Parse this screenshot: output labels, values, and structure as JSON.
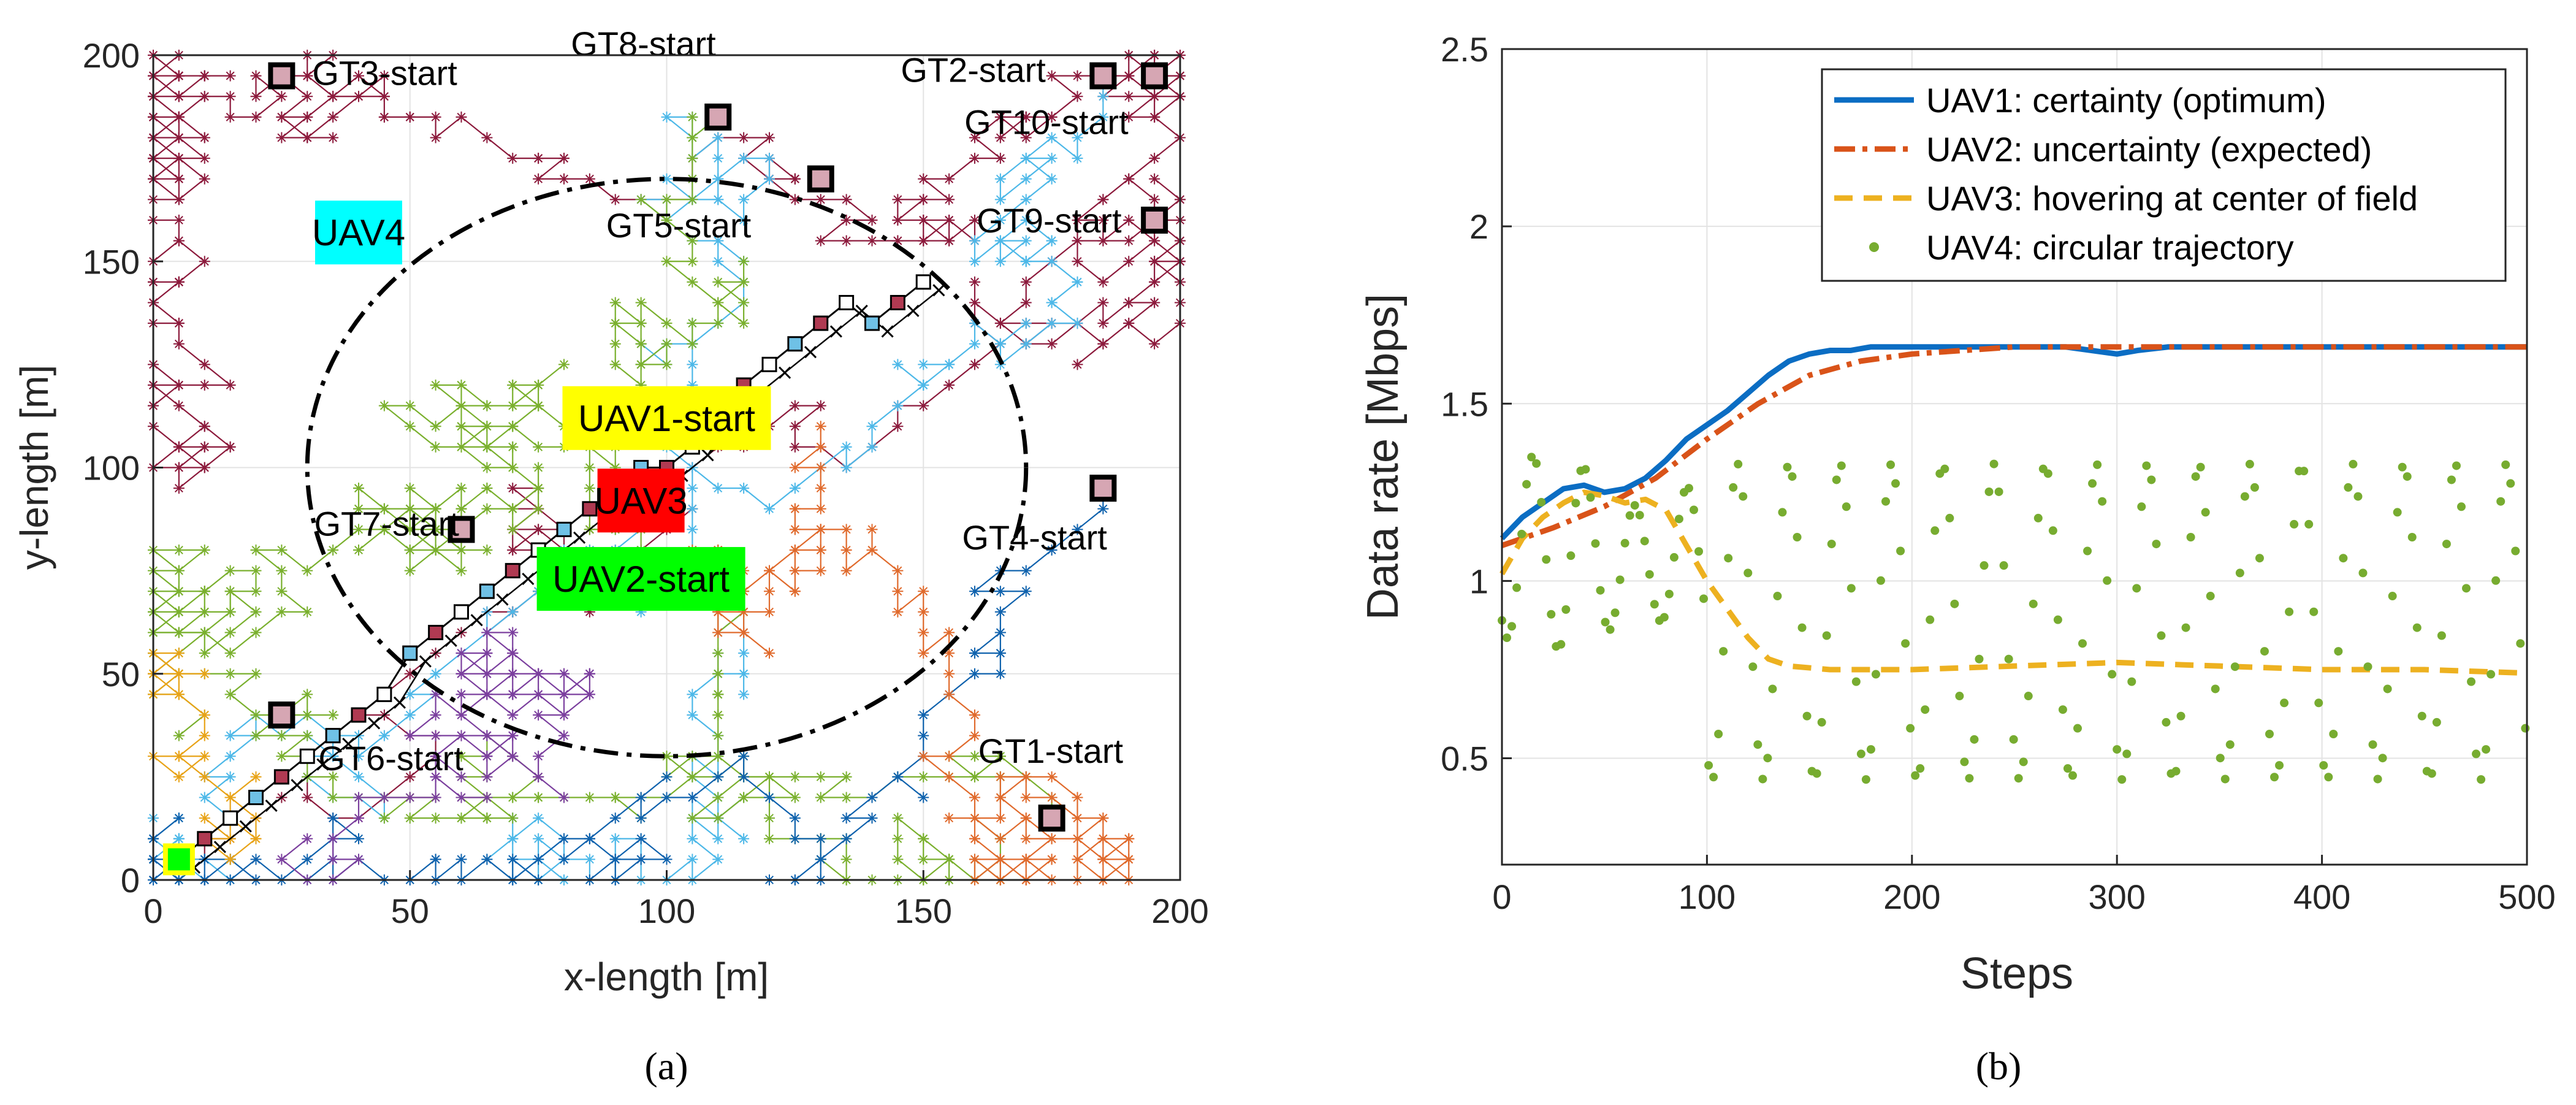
{
  "colors": {
    "trajectories": [
      "#8c1a3c",
      "#4db8e8",
      "#7ab02e",
      "#0f62ad",
      "#e06a2c",
      "#7b3f9e",
      "#e8a317"
    ],
    "uav1": "#0b6dc3",
    "uav2": "#d95319",
    "uav3": "#edb120",
    "uav4": "#77ac30",
    "uav_boxes": {
      "UAV1-start": "#ffff00",
      "UAV2-start": "#00ff00",
      "UAV3": "#ff0000",
      "UAV4": "#00ffff"
    }
  },
  "panel_a": {
    "caption": "(a)",
    "xlabel": "x-length [m]",
    "ylabel": "y-length [m]",
    "xlim": [
      0,
      200
    ],
    "ylim": [
      0,
      200
    ],
    "xticks": [
      "0",
      "50",
      "100",
      "150",
      "200"
    ],
    "yticks": [
      "0",
      "50",
      "100",
      "150",
      "200"
    ],
    "ground_terminals": [
      {
        "label": "GT1-start",
        "x": 175,
        "y": 15
      },
      {
        "label": "GT2-start",
        "x": 185,
        "y": 195
      },
      {
        "label": "GT3-start",
        "x": 25,
        "y": 195
      },
      {
        "label": "GT4-start",
        "x": 185,
        "y": 95
      },
      {
        "label": "GT5-start",
        "x": 130,
        "y": 170
      },
      {
        "label": "GT6-start",
        "x": 25,
        "y": 40
      },
      {
        "label": "GT7-start",
        "x": 60,
        "y": 85
      },
      {
        "label": "GT8-start",
        "x": 110,
        "y": 185
      },
      {
        "label": "GT9-start",
        "x": 195,
        "y": 160
      },
      {
        "label": "GT10-start",
        "x": 195,
        "y": 195
      }
    ],
    "uav_labels": [
      {
        "label": "UAV1-start",
        "x": 100,
        "y": 112
      },
      {
        "label": "UAV2-start",
        "x": 95,
        "y": 73
      },
      {
        "label": "UAV3",
        "x": 95,
        "y": 92
      },
      {
        "label": "UAV4",
        "x": 40,
        "y": 157
      }
    ],
    "circle": {
      "center": [
        100,
        100
      ],
      "radius": 70
    },
    "uav_path": [
      [
        5,
        5
      ],
      [
        10,
        10
      ],
      [
        15,
        15
      ],
      [
        20,
        20
      ],
      [
        25,
        25
      ],
      [
        30,
        30
      ],
      [
        35,
        35
      ],
      [
        40,
        40
      ],
      [
        45,
        45
      ],
      [
        50,
        55
      ],
      [
        55,
        60
      ],
      [
        60,
        65
      ],
      [
        65,
        70
      ],
      [
        70,
        75
      ],
      [
        75,
        80
      ],
      [
        80,
        85
      ],
      [
        85,
        90
      ],
      [
        90,
        95
      ],
      [
        95,
        100
      ],
      [
        100,
        100
      ],
      [
        105,
        105
      ],
      [
        110,
        115
      ],
      [
        115,
        120
      ],
      [
        120,
        125
      ],
      [
        125,
        130
      ],
      [
        130,
        135
      ],
      [
        135,
        140
      ],
      [
        140,
        135
      ],
      [
        145,
        140
      ],
      [
        150,
        145
      ]
    ]
  },
  "chart_data": [
    {
      "type": "scatter",
      "caption": "(a)",
      "xlabel": "x-length [m]",
      "ylabel": "y-length [m]",
      "xlim": [
        0,
        200
      ],
      "ylim": [
        0,
        200
      ],
      "grid": true
    },
    {
      "type": "line",
      "caption": "(b)",
      "xlabel": "Steps",
      "ylabel": "Data rate [Mbps]",
      "xlim": [
        0,
        500
      ],
      "ylim": [
        0.2,
        2.5
      ],
      "xticks": [
        "0",
        "100",
        "200",
        "300",
        "400",
        "500"
      ],
      "yticks": [
        "0.5",
        "1",
        "1.5",
        "2",
        "2.5"
      ],
      "grid": true,
      "legend_position": "top-right",
      "series": [
        {
          "name": "UAV1: certainty (optimum)",
          "style": "solid",
          "x": [
            0,
            10,
            20,
            30,
            40,
            50,
            60,
            70,
            80,
            90,
            100,
            110,
            120,
            130,
            140,
            150,
            160,
            170,
            180,
            190,
            200,
            225,
            250,
            275,
            300,
            310,
            325,
            350,
            375,
            400,
            425,
            450,
            475,
            500
          ],
          "y": [
            1.12,
            1.18,
            1.22,
            1.26,
            1.27,
            1.25,
            1.26,
            1.29,
            1.34,
            1.4,
            1.44,
            1.48,
            1.53,
            1.58,
            1.62,
            1.64,
            1.65,
            1.65,
            1.66,
            1.66,
            1.66,
            1.66,
            1.66,
            1.66,
            1.64,
            1.65,
            1.66,
            1.66,
            1.66,
            1.66,
            1.66,
            1.66,
            1.66,
            1.66
          ]
        },
        {
          "name": "UAV2: uncertainty (expected)",
          "style": "dashdot",
          "x": [
            0,
            25,
            50,
            75,
            100,
            125,
            150,
            175,
            200,
            250,
            300,
            350,
            400,
            450,
            500
          ],
          "y": [
            1.1,
            1.15,
            1.21,
            1.29,
            1.4,
            1.5,
            1.58,
            1.62,
            1.64,
            1.66,
            1.66,
            1.66,
            1.66,
            1.66,
            1.66
          ]
        },
        {
          "name": "UAV3: hovering at center of field",
          "style": "dashed",
          "x": [
            0,
            10,
            20,
            30,
            40,
            50,
            60,
            70,
            80,
            90,
            100,
            110,
            120,
            130,
            140,
            160,
            180,
            200,
            250,
            300,
            350,
            400,
            450,
            500
          ],
          "y": [
            1.02,
            1.12,
            1.18,
            1.22,
            1.25,
            1.24,
            1.22,
            1.23,
            1.2,
            1.1,
            1.0,
            0.92,
            0.84,
            0.78,
            0.76,
            0.75,
            0.75,
            0.75,
            0.76,
            0.77,
            0.76,
            0.75,
            0.75,
            0.74
          ]
        },
        {
          "name": "UAV4: circular trajectory",
          "style": "dots",
          "period": 25,
          "phase": 10,
          "min": 0.44,
          "max": 1.33
        }
      ]
    }
  ]
}
